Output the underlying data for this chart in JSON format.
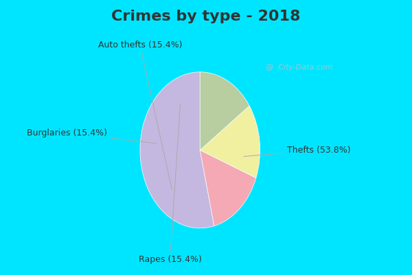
{
  "title": "Crimes by type - 2018",
  "slices": [
    {
      "label": "Thefts (53.8%)",
      "value": 53.8,
      "color": "#c4b8e0"
    },
    {
      "label": "Auto thefts (15.4%)",
      "value": 15.4,
      "color": "#f4a9b5"
    },
    {
      "label": "Burglaries (15.4%)",
      "value": 15.4,
      "color": "#f0f0a0"
    },
    {
      "label": "Rapes (15.4%)",
      "value": 15.4,
      "color": "#b8cda0"
    }
  ],
  "startangle": 90,
  "title_fontsize": 16,
  "label_fontsize": 9,
  "title_color": "#333333",
  "label_color": "#333333",
  "watermark": "@  City-Data.com",
  "watermark_color": "#a0c8d0",
  "fig_bg": "#00e5ff",
  "chart_bg_color": "#d8eee4"
}
